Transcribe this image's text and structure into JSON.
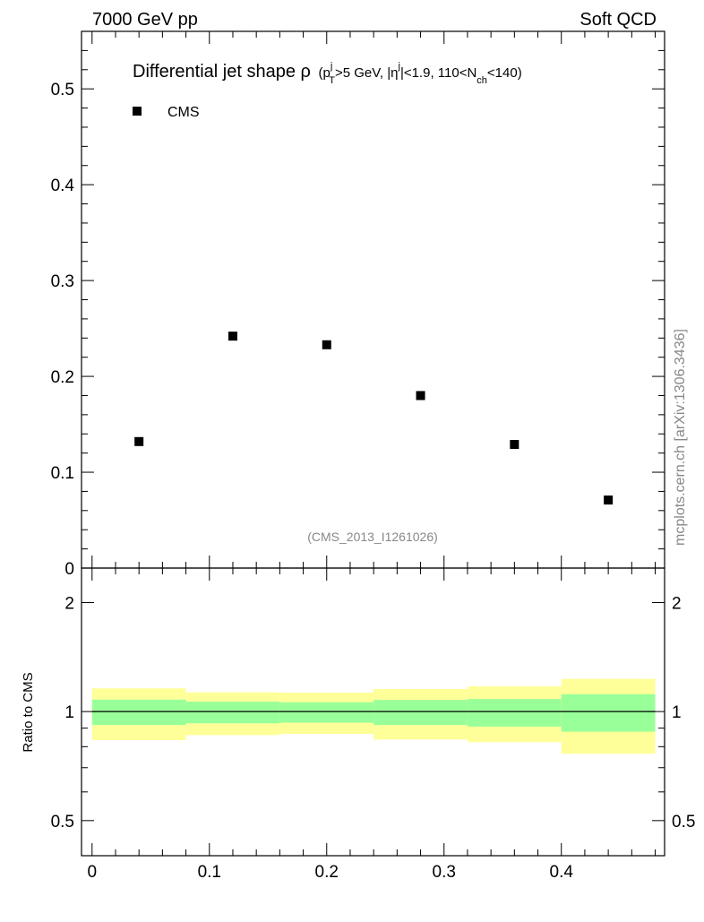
{
  "header": {
    "left": "7000 GeV pp",
    "right": "Soft QCD"
  },
  "side_label": "mcplots.cern.ch [arXiv:1306.3436]",
  "analysis_id": "(CMS_2013_I1261026)",
  "colors": {
    "data": "#000000",
    "band_inner": "#99ff99",
    "band_outer": "#ffff99",
    "gray_text": "#888888"
  },
  "chart_data": [
    {
      "type": "scatter",
      "title_main": "Differential jet shape ρ",
      "title_sub": "(p",
      "title_parts": {
        "pT_sup": "j",
        "pT_sub": "T",
        "after_pt": ">5 GeV, |η",
        "eta_sup": "j",
        "after_eta": "|<1.9, 110<N",
        "nch_sub": "ch",
        "end": "<140)"
      },
      "legend": [
        {
          "label": "CMS",
          "marker": "square"
        }
      ],
      "legend_placement": "top-left",
      "xlim": [
        -0.009,
        0.488
      ],
      "ylim": [
        0,
        0.56
      ],
      "yticks": [
        0,
        0.1,
        0.2,
        0.3,
        0.4,
        0.5
      ],
      "ytick_labels": [
        "0",
        "0.1",
        "0.2",
        "0.3",
        "0.4",
        "0.5"
      ],
      "series": [
        {
          "name": "CMS",
          "x": [
            0.04,
            0.12,
            0.2,
            0.28,
            0.36,
            0.44
          ],
          "y": [
            0.132,
            0.242,
            0.233,
            0.18,
            0.129,
            0.071
          ]
        }
      ]
    },
    {
      "type": "area",
      "ylabel": "Ratio to CMS",
      "yscale": "log",
      "ylim": [
        0.4,
        2.49
      ],
      "yticks": [
        0.5,
        1,
        2
      ],
      "ytick_labels": [
        "0.5",
        "1",
        "2"
      ],
      "xticks": [
        0,
        0.1,
        0.2,
        0.3,
        0.4
      ],
      "xtick_labels": [
        "0",
        "0.1",
        "0.2",
        "0.3",
        "0.4"
      ],
      "bin_edges": [
        0,
        0.08,
        0.16,
        0.24,
        0.32,
        0.4,
        0.48
      ],
      "outer_band": {
        "low": [
          0.834,
          0.861,
          0.868,
          0.837,
          0.823,
          0.765
        ],
        "high": [
          1.159,
          1.13,
          1.128,
          1.154,
          1.174,
          1.231
        ]
      },
      "inner_band": {
        "low": [
          0.918,
          0.928,
          0.932,
          0.918,
          0.909,
          0.88
        ],
        "high": [
          1.079,
          1.065,
          1.061,
          1.077,
          1.083,
          1.117
        ]
      },
      "reference_line": 1
    }
  ]
}
